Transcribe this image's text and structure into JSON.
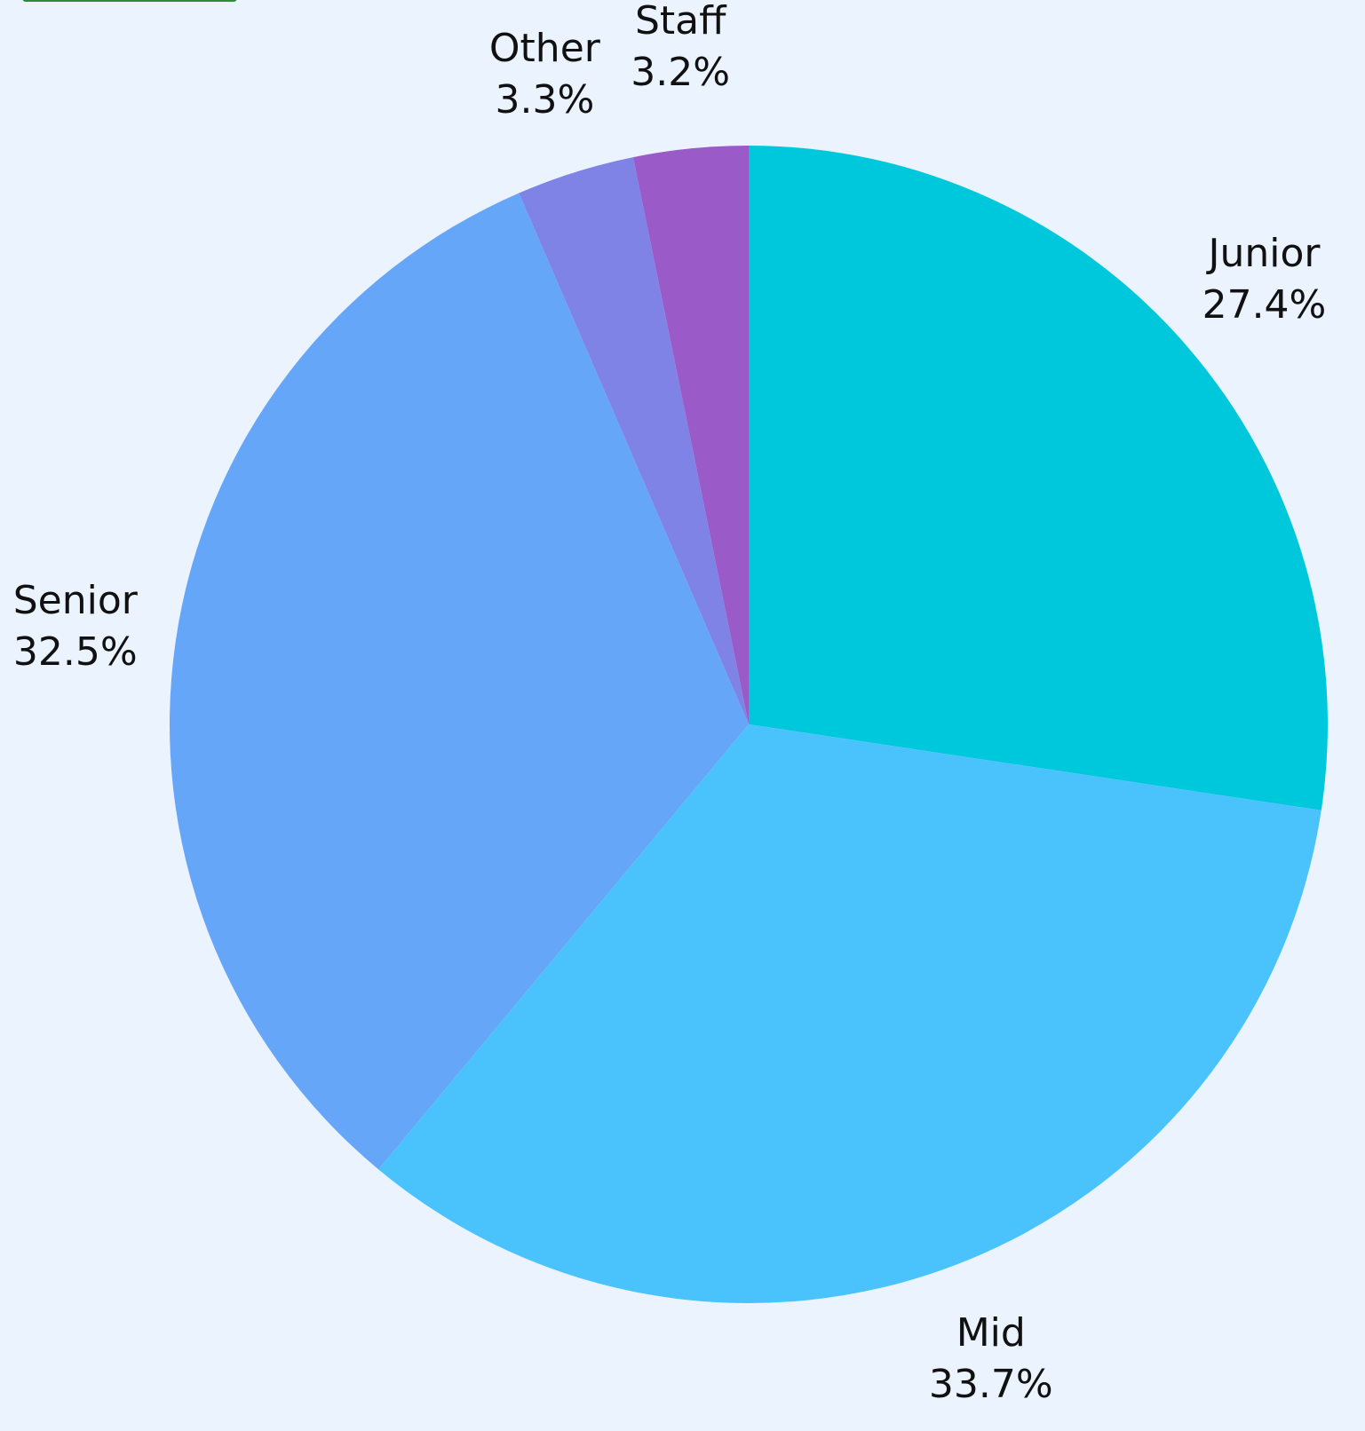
{
  "chart_data": {
    "type": "pie",
    "categories": [
      "Junior",
      "Mid",
      "Senior",
      "Other",
      "Staff"
    ],
    "values": [
      27.4,
      33.7,
      32.5,
      3.3,
      3.2
    ],
    "value_labels": [
      "27.4%",
      "33.7%",
      "32.5%",
      "3.3%",
      "3.2%"
    ],
    "colors": [
      "#00c8dc",
      "#4ac3fd",
      "#66a6f8",
      "#8083e6",
      "#9a5ac8"
    ]
  }
}
